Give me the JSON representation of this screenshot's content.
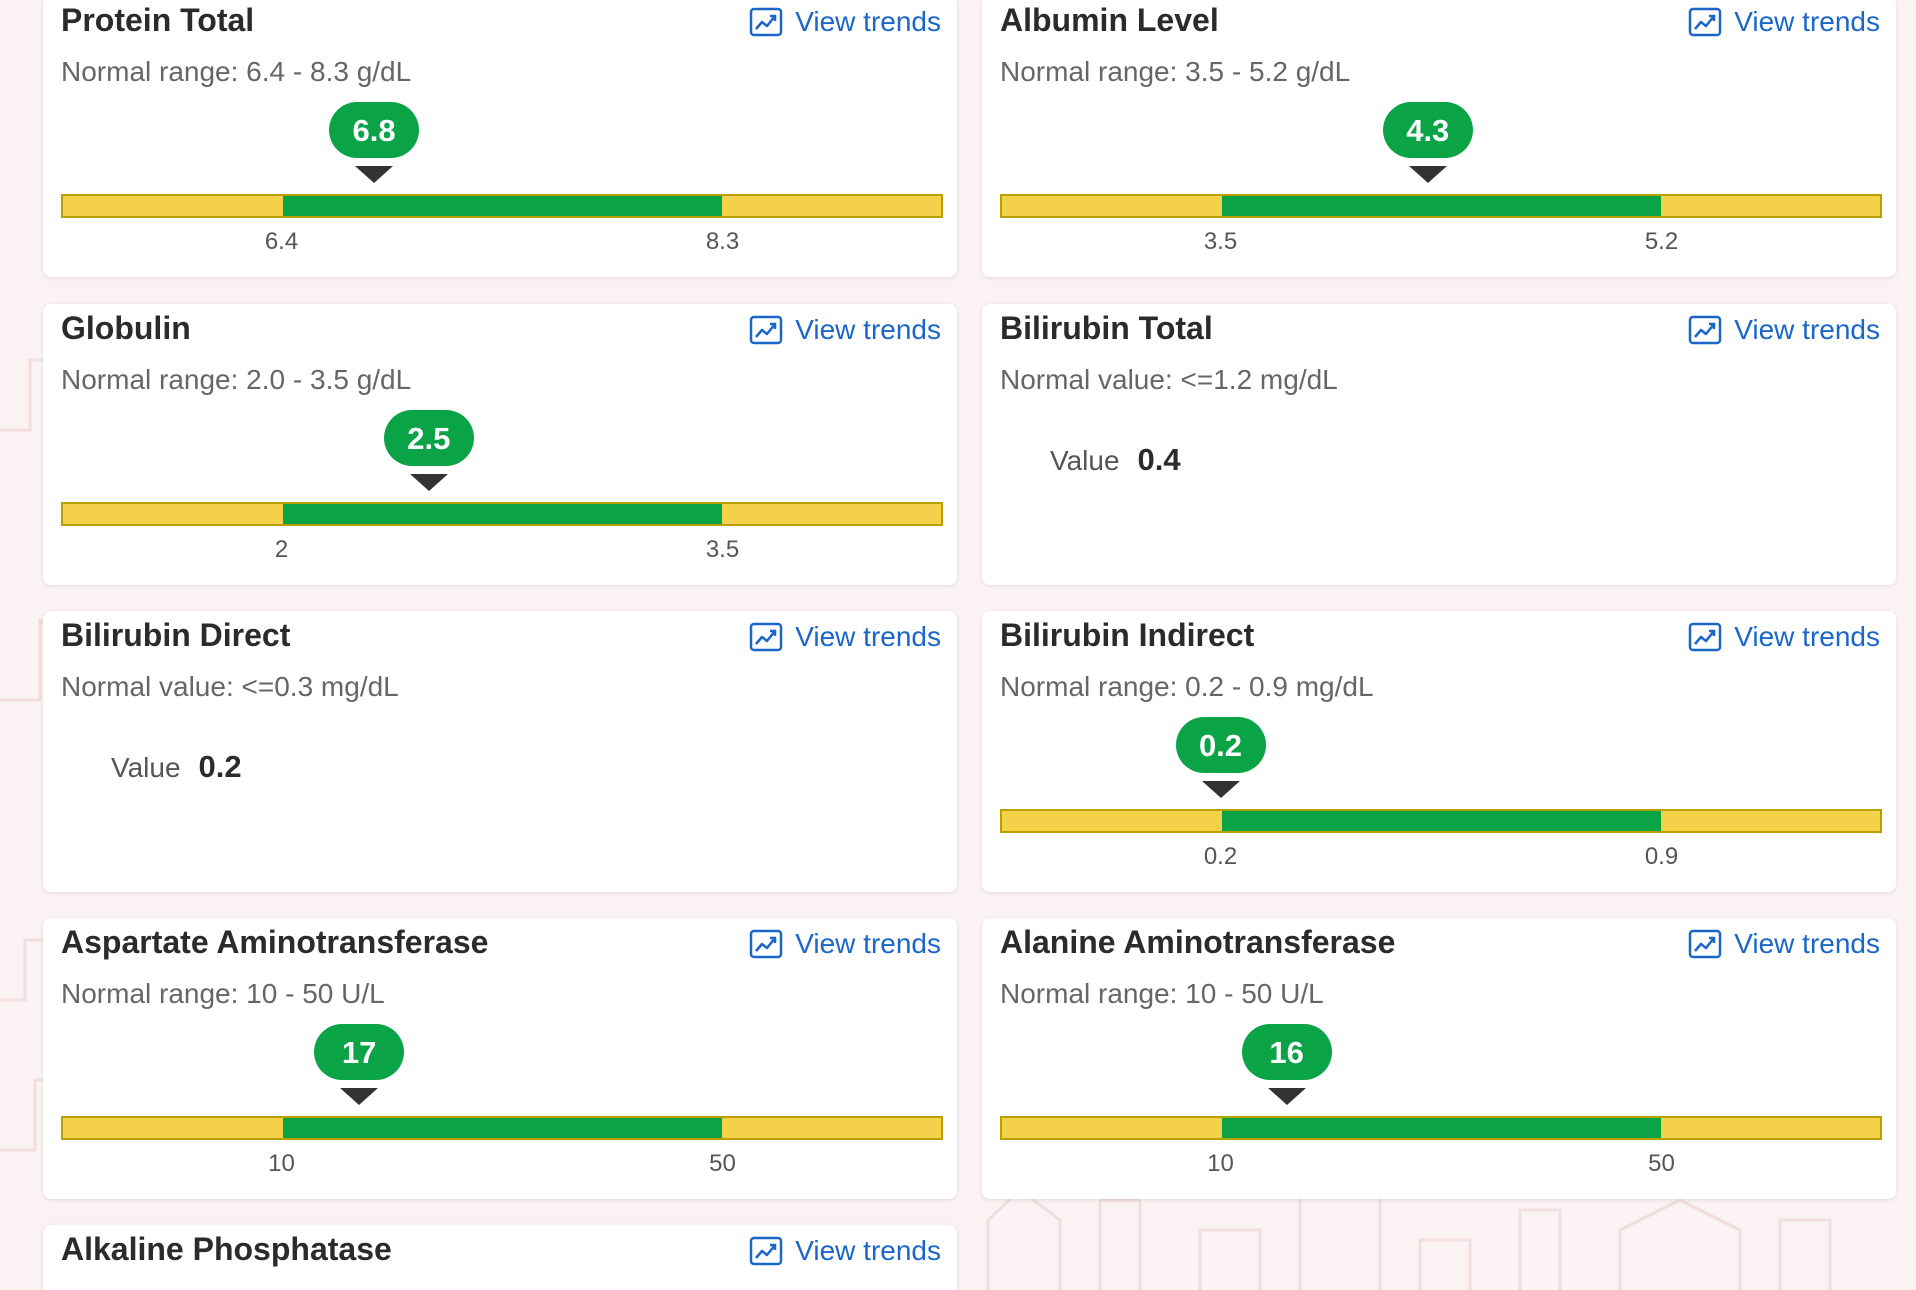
{
  "trend_label": "View trends",
  "value_label": "Value",
  "colors": {
    "normal": "#0aa447",
    "out_of_range": "#f3d24a",
    "link": "#1a66c9"
  },
  "tests": [
    {
      "name": "Protein Total",
      "range_text": "Normal range: 6.4 - 8.3 g/dL",
      "value": "6.8",
      "low": "6.4",
      "high": "8.3",
      "value_position_pct": 35.5
    },
    {
      "name": "Albumin Level",
      "range_text": "Normal range: 3.5 - 5.2 g/dL",
      "value": "4.3",
      "low": "3.5",
      "high": "5.2",
      "value_position_pct": 48.5
    },
    {
      "name": "Globulin",
      "range_text": "Normal range: 2.0 - 3.5 g/dL",
      "value": "2.5",
      "low": "2",
      "high": "3.5",
      "value_position_pct": 41.7
    },
    {
      "name": "Bilirubin Total",
      "range_text": "Normal value: <=1.2 mg/dL",
      "value": "0.4"
    },
    {
      "name": "Bilirubin Direct",
      "range_text": "Normal value: <=0.3 mg/dL",
      "value": "0.2"
    },
    {
      "name": "Bilirubin Indirect",
      "range_text": "Normal range: 0.2 - 0.9 mg/dL",
      "value": "0.2",
      "low": "0.2",
      "high": "0.9",
      "value_position_pct": 25.0
    },
    {
      "name": "Aspartate Aminotransferase",
      "range_text": "Normal range: 10 - 50 U/L",
      "value": "17",
      "low": "10",
      "high": "50",
      "value_position_pct": 33.8
    },
    {
      "name": "Alanine Aminotransferase",
      "range_text": "Normal range: 10 - 50 U/L",
      "value": "16",
      "low": "10",
      "high": "50",
      "value_position_pct": 32.5
    },
    {
      "name": "Alkaline Phosphatase"
    }
  ]
}
